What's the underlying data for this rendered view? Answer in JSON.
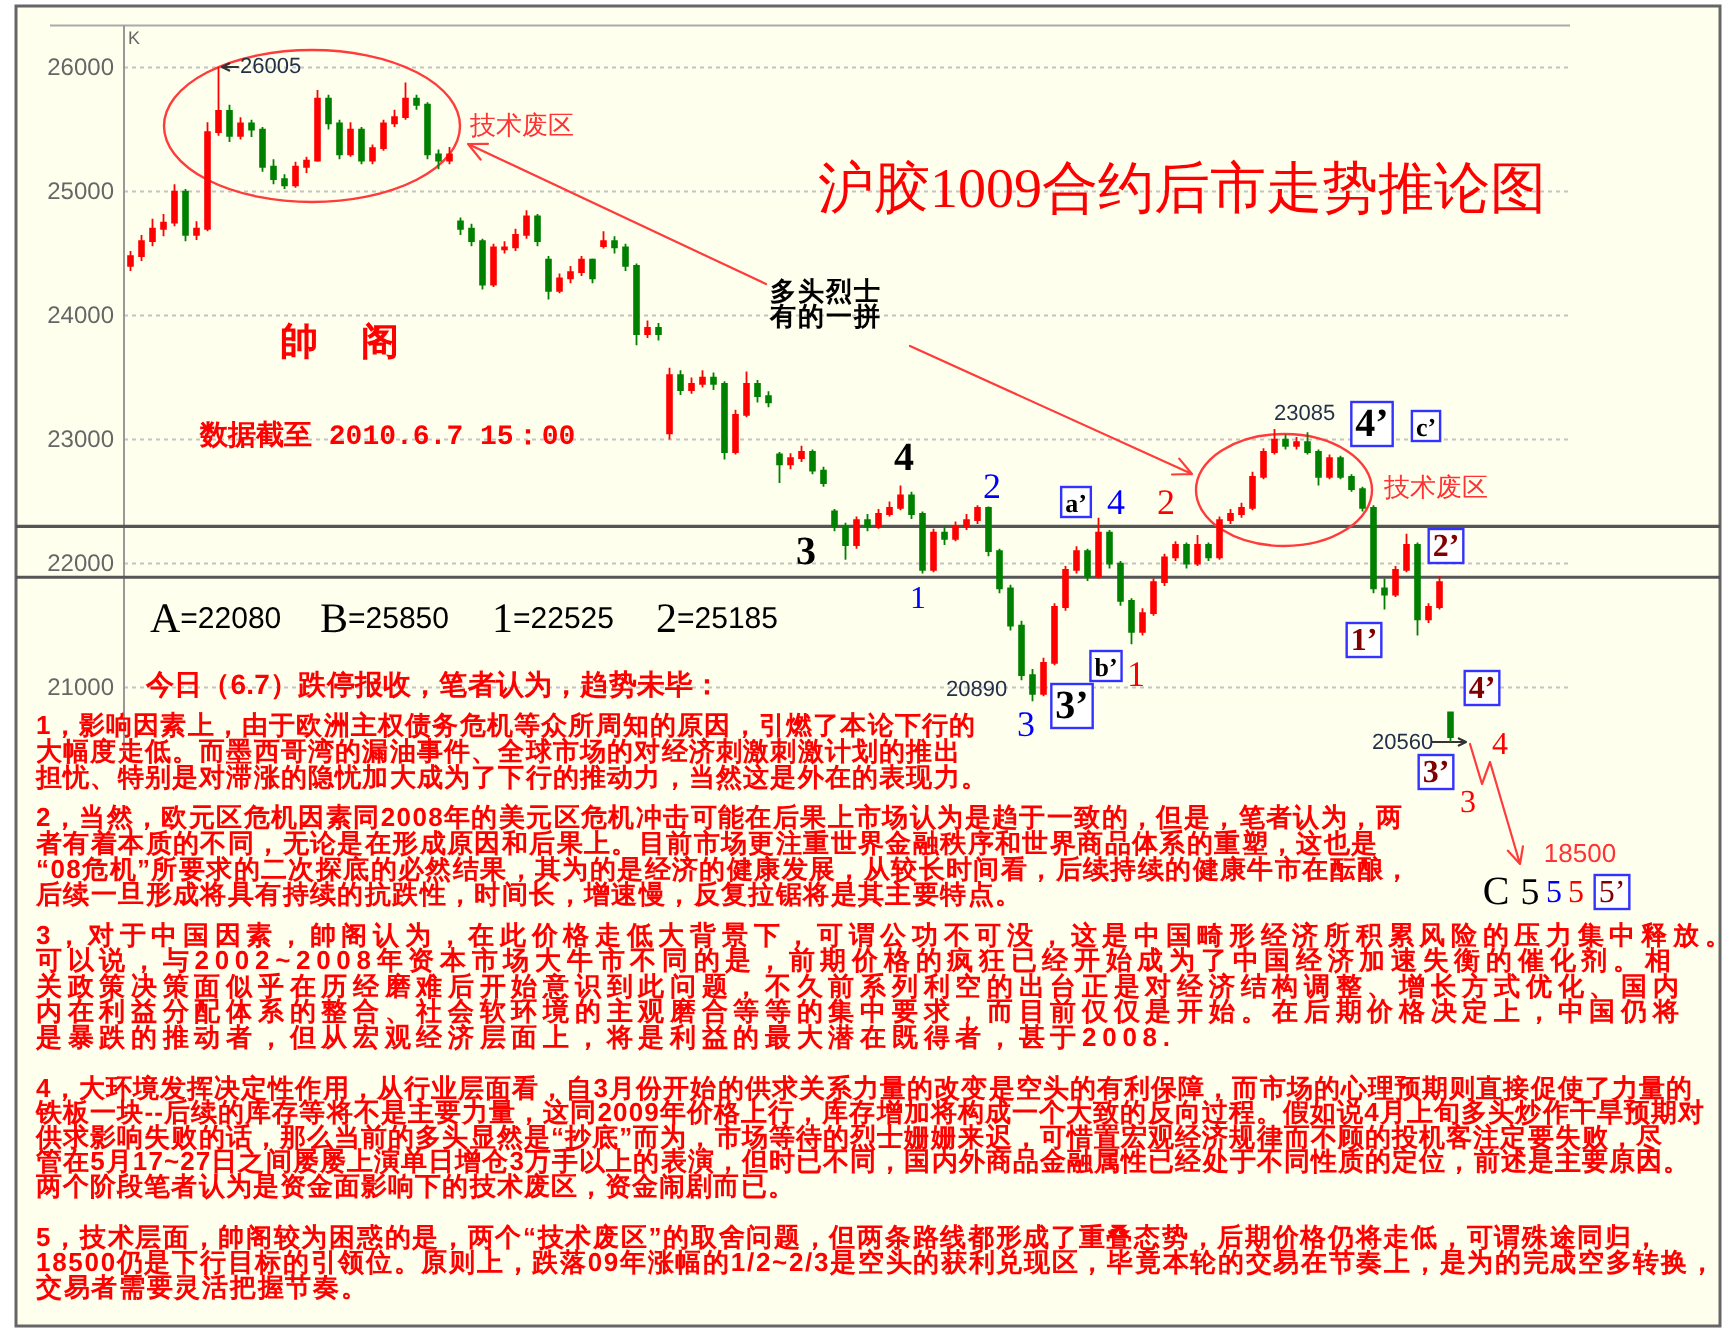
{
  "chart_data": {
    "type": "candlestick",
    "title": "沪胶1009合约后市走势推论图",
    "categories": [
      null,
      null,
      null,
      null,
      null,
      null,
      null,
      null,
      null,
      null,
      null,
      null,
      null,
      null,
      null,
      null,
      null,
      null,
      null,
      null,
      null,
      null,
      null,
      null,
      null,
      null,
      null,
      null,
      null,
      null,
      null,
      null,
      null,
      null,
      null,
      null,
      null,
      null,
      null,
      null,
      null,
      null,
      null,
      null,
      null,
      null,
      null,
      null,
      null,
      null,
      null,
      null,
      null,
      null,
      null,
      null,
      null,
      null,
      null,
      null,
      null,
      null,
      null,
      null,
      null,
      null,
      null,
      null,
      null,
      null,
      null,
      null,
      null,
      null,
      null,
      null,
      null,
      null,
      null,
      null,
      null,
      null,
      null,
      null,
      null,
      null,
      null,
      null,
      null,
      null,
      null,
      null,
      null,
      null,
      null,
      null,
      null,
      null,
      null,
      null,
      null,
      null,
      null,
      null,
      null,
      null,
      null,
      null,
      null,
      null,
      null,
      null,
      null,
      null,
      null,
      null,
      null,
      null,
      null,
      null,
      null
    ],
    "ohlc": [
      [
        24400,
        24520,
        24360,
        24480
      ],
      [
        24480,
        24650,
        24440,
        24600
      ],
      [
        24600,
        24780,
        24560,
        24700
      ],
      [
        24700,
        24820,
        24640,
        24750
      ],
      [
        24750,
        25060,
        24720,
        25000
      ],
      [
        25000,
        25020,
        24600,
        24650
      ],
      [
        24650,
        24760,
        24610,
        24700
      ],
      [
        24700,
        25560,
        24680,
        25480
      ],
      [
        25480,
        26005,
        25450,
        25650
      ],
      [
        25650,
        25700,
        25400,
        25450
      ],
      [
        25450,
        25600,
        25420,
        25550
      ],
      [
        25550,
        25580,
        25440,
        25500
      ],
      [
        25500,
        25520,
        25160,
        25200
      ],
      [
        25200,
        25260,
        25060,
        25100
      ],
      [
        25100,
        25140,
        25020,
        25050
      ],
      [
        25050,
        25240,
        25030,
        25200
      ],
      [
        25200,
        25280,
        25150,
        25250
      ],
      [
        25250,
        25820,
        25240,
        25750
      ],
      [
        25750,
        25780,
        25500,
        25550
      ],
      [
        25550,
        25580,
        25260,
        25300
      ],
      [
        25300,
        25560,
        25280,
        25500
      ],
      [
        25500,
        25520,
        25220,
        25250
      ],
      [
        25250,
        25380,
        25220,
        25350
      ],
      [
        25350,
        25580,
        25330,
        25550
      ],
      [
        25550,
        25660,
        25520,
        25600
      ],
      [
        25600,
        25880,
        25580,
        25750
      ],
      [
        25750,
        25780,
        25660,
        25700
      ],
      [
        25700,
        25720,
        25260,
        25300
      ],
      [
        25300,
        25340,
        25180,
        25250
      ],
      [
        25250,
        25360,
        25220,
        25300
      ],
      [
        24760,
        24790,
        24650,
        24700
      ],
      [
        24700,
        24740,
        24560,
        24600
      ],
      [
        24600,
        24620,
        24210,
        24250
      ],
      [
        24250,
        24580,
        24230,
        24550
      ],
      [
        24550,
        24600,
        24500,
        24550
      ],
      [
        24550,
        24700,
        24520,
        24650
      ],
      [
        24650,
        24850,
        24620,
        24800
      ],
      [
        24800,
        24820,
        24560,
        24600
      ],
      [
        24450,
        24480,
        24130,
        24200
      ],
      [
        24200,
        24340,
        24180,
        24300
      ],
      [
        24300,
        24400,
        24260,
        24350
      ],
      [
        24350,
        24480,
        24320,
        24450
      ],
      [
        24450,
        24460,
        24260,
        24300
      ],
      [
        24560,
        24680,
        24540,
        24600
      ],
      [
        24600,
        24640,
        24500,
        24550
      ],
      [
        24550,
        24580,
        24360,
        24400
      ],
      [
        24400,
        24420,
        23760,
        23850
      ],
      [
        23850,
        23960,
        23820,
        23900
      ],
      [
        23900,
        23940,
        23800,
        23850
      ],
      [
        23050,
        23580,
        23000,
        23520
      ],
      [
        23520,
        23560,
        23360,
        23400
      ],
      [
        23400,
        23500,
        23370,
        23450
      ],
      [
        23450,
        23560,
        23420,
        23500
      ],
      [
        23500,
        23540,
        23400,
        23450
      ],
      [
        23450,
        23470,
        22840,
        22900
      ],
      [
        22900,
        23240,
        22880,
        23200
      ],
      [
        23200,
        23550,
        23180,
        23450
      ],
      [
        23450,
        23480,
        23300,
        23350
      ],
      [
        23350,
        23390,
        23260,
        23300
      ],
      [
        22880,
        22900,
        22650,
        22800
      ],
      [
        22800,
        22890,
        22760,
        22850
      ],
      [
        22850,
        22950,
        22820,
        22900
      ],
      [
        22900,
        22920,
        22720,
        22750
      ],
      [
        22750,
        22780,
        22620,
        22650
      ],
      [
        22420,
        22440,
        22260,
        22300
      ],
      [
        22300,
        22330,
        22030,
        22150
      ],
      [
        22150,
        22380,
        22120,
        22350
      ],
      [
        22350,
        22400,
        22260,
        22300
      ],
      [
        22300,
        22440,
        22280,
        22400
      ],
      [
        22400,
        22500,
        22380,
        22450
      ],
      [
        22450,
        22630,
        22430,
        22550
      ],
      [
        22550,
        22580,
        22360,
        22400
      ],
      [
        22400,
        22420,
        21920,
        21950
      ],
      [
        21950,
        22280,
        21930,
        22250
      ],
      [
        22250,
        22300,
        22150,
        22200
      ],
      [
        22200,
        22340,
        22180,
        22300
      ],
      [
        22300,
        22400,
        22270,
        22350
      ],
      [
        22350,
        22470,
        22320,
        22450
      ],
      [
        22450,
        22460,
        22060,
        22100
      ],
      [
        22100,
        22120,
        21760,
        21800
      ],
      [
        21800,
        21830,
        21460,
        21500
      ],
      [
        21500,
        21540,
        21060,
        21100
      ],
      [
        21100,
        21150,
        20890,
        20950
      ],
      [
        20950,
        21240,
        20930,
        21200
      ],
      [
        21200,
        21680,
        21180,
        21650
      ],
      [
        21650,
        21980,
        21620,
        21950
      ],
      [
        21950,
        22140,
        21920,
        22100
      ],
      [
        22100,
        22120,
        21860,
        21900
      ],
      [
        21900,
        22370,
        21880,
        22250
      ],
      [
        22250,
        22270,
        21960,
        22000
      ],
      [
        22000,
        22020,
        21660,
        21700
      ],
      [
        21700,
        21720,
        21350,
        21450
      ],
      [
        21450,
        21640,
        21420,
        21600
      ],
      [
        21600,
        21880,
        21580,
        21850
      ],
      [
        21850,
        22080,
        21820,
        22050
      ],
      [
        22050,
        22180,
        22020,
        22150
      ],
      [
        22150,
        22170,
        21960,
        22000
      ],
      [
        22000,
        22230,
        21980,
        22150
      ],
      [
        22150,
        22170,
        22020,
        22050
      ],
      [
        22050,
        22380,
        22030,
        22350
      ],
      [
        22350,
        22440,
        22320,
        22400
      ],
      [
        22400,
        22490,
        22370,
        22450
      ],
      [
        22450,
        22740,
        22430,
        22700
      ],
      [
        22700,
        22930,
        22680,
        22900
      ],
      [
        22900,
        23085,
        22880,
        23000
      ],
      [
        23000,
        23040,
        22920,
        22950
      ],
      [
        22950,
        23020,
        22920,
        22980
      ],
      [
        22980,
        23060,
        22880,
        22900
      ],
      [
        22900,
        22920,
        22630,
        22700
      ],
      [
        22700,
        22880,
        22680,
        22850
      ],
      [
        22850,
        22870,
        22680,
        22700
      ],
      [
        22700,
        22720,
        22580,
        22600
      ],
      [
        22600,
        22620,
        22420,
        22450
      ],
      [
        22450,
        22470,
        21760,
        21800
      ],
      [
        21800,
        21880,
        21630,
        21750
      ],
      [
        21750,
        21980,
        21730,
        21950
      ],
      [
        21950,
        22240,
        21930,
        22150
      ],
      [
        22150,
        22170,
        21420,
        21550
      ],
      [
        21550,
        21680,
        21520,
        21650
      ],
      [
        21650,
        21900,
        21630,
        21850
      ],
      [
        20800,
        20800,
        20560,
        20600
      ]
    ],
    "ylim": [
      20500,
      26340
    ],
    "yticks": [
      21000,
      22000,
      23000,
      24000,
      25000,
      26000
    ],
    "grid": "y",
    "tick_labels": "y",
    "ref_lines": [
      {
        "axis": "y",
        "value": 22300,
        "color": "#555555"
      },
      {
        "axis": "y",
        "value": 21890,
        "color": "#555555"
      }
    ],
    "annotations": [
      "K",
      "帥 阁",
      "数据截至 2010.6.7 15：00",
      "技术废区",
      "技术废区",
      "多头烈士有的一拼",
      "26005",
      "23085",
      "20890",
      "20560",
      "A=22080",
      "B=25850",
      "1=22525",
      "2=25185",
      "3",
      "4",
      "2",
      "1",
      "a’",
      "4",
      "2",
      "4’",
      "c’",
      "2’",
      "1’",
      "3",
      "3’",
      "b’",
      "1",
      "4’",
      "3’",
      "3",
      "4",
      "18500",
      "C",
      "5",
      "5",
      "5",
      "5’",
      "今日（6.7）跌停报收，笔者认为，趋势未毕：",
      "1，影响因素上，由于欧洲主权债务危机等众所周知的原因，引燃了本论下行的大幅度走低。而墨西哥湾的漏油事件、全球市场的对经济刺激刺激计划的推出担忧、特别是对滞涨的隐忧加大成为了下行的推动力，当然这是外在的表现力。",
      "2，当然，欧元区危机因素同2008年的美元区危机冲击可能在后果上市场认为是趋于一致的，但是，笔者认为，两者有着本质的不同，无论是在形成原因和后果上。目前市场更注重世界金融秩序和世界商品体系的重塑，这也是“08危机”所要求的二次探底的必然结果，其为的是经济的健康发展，从较长时间看，后续持续的健康牛市在酝酿，后续一旦形成将具有持续的抗跌性，时间长，增速慢，反复拉锯将是其主要特点。",
      "3，对于中国因素，帥阁认为，在此价格走低大背景下，可谓公功不可没，这是中国畸形经济所积累风险的压力集中释放。可以说，与2002~2008年资本市场大牛市不同的是，前期价格的疯狂已经开始成为了中国经济加速失衡的催化剂。相关政策决策面似乎在历经磨难后开始意识到此问题，不久前系列利空的出台正是对经济结构调整、增长方式优化、国内内在利益分配体系的整合、社会软环境的主观磨合等等的集中要求，而目前仅仅是开始。在后期价格决定上，中国仍将是暴跌的推动者，但从宏观经济层面上，将是利益的最大潜在既得者，甚于2008.",
      "4，大环境发挥决定性作用，从行业层面看，自3月份开始的供求关系力量的改变是空头的有利保障，而市场的心理预期则直接促使了力量的铁板一块--后续的库存等将不是主要力量，这同2009年价格上行，库存增加将构成一个大致的反向过程。假如说4月上旬多头炒作干旱预期对供求影响失败的话，那么当前的多头显然是“抄底”而为，市场等待的烈士姗姗来迟，可惜置宏观经济规律而不顾的投机客注定要失败，尽管在5月17~27日之间屡屡上演单日增仓3万手以上的表演，但时已不同，国内外商品金融属性已经处于不同性质的定位，前述是主要原因。两个阶段笔者认为是资金面影响下的技术废区，资金闹剧而已。",
      "5，技术层面，帥阁较为困惑的是，两个“技术废区”的取舍问题，但两条路线都形成了重叠态势，后期价格仍将走低，可谓殊途同归，18500仍是下行目标的引领位。原则上，跌落09年涨幅的1/2~2/3是空头的获利兑现区，毕竟本轮的交易在节奏上，是为的完成空多转换，交易者需要灵活把握节奏。"
    ]
  }
}
